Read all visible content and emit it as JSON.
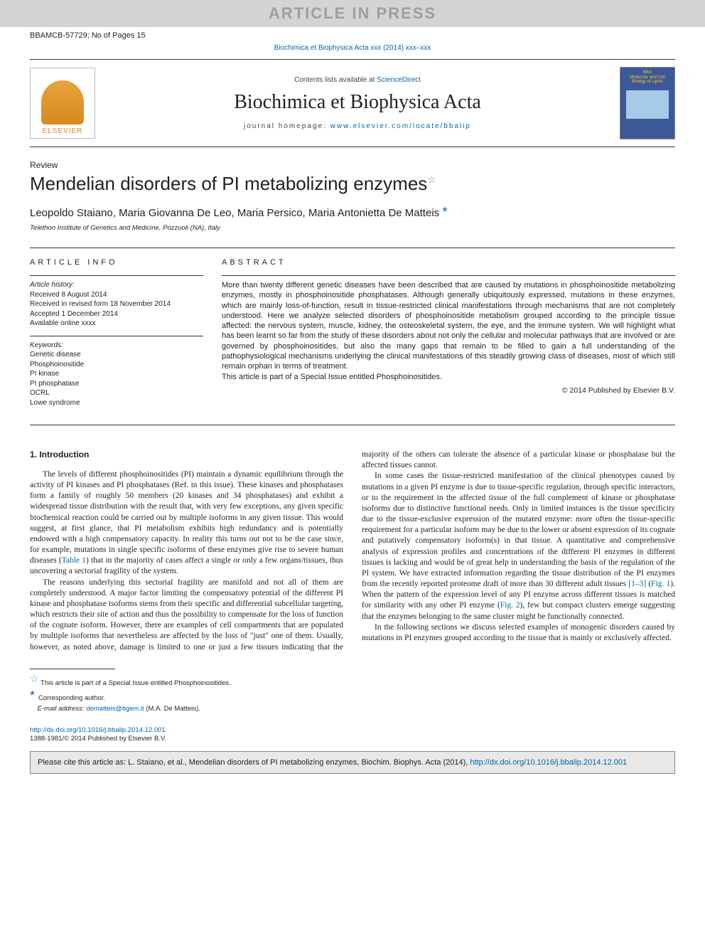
{
  "top_bar": "ARTICLE IN PRESS",
  "manuscript_id": "BBAMCB-57729; No of Pages 15",
  "citation_line": "Biochimica et Biophysica Acta xxx (2014) xxx–xxx",
  "header": {
    "contents_prefix": "Contents lists available at ",
    "contents_link": "ScienceDirect",
    "journal_name": "Biochimica et Biophysica Acta",
    "homepage_prefix": "journal homepage: ",
    "homepage_url": "www.elsevier.com/locate/bbalip",
    "elsevier_label": "ELSEVIER",
    "cover_top1": "BBA",
    "cover_top2": "Molecular and Cell Biology of Lipids"
  },
  "article": {
    "type": "Review",
    "title": "Mendelian disorders of PI metabolizing enzymes",
    "authors": "Leopoldo Staiano, Maria Giovanna De Leo, Maria Persico, Maria Antonietta De Matteis ",
    "affiliation": "Telethon Institute of Genetics and Medicine, Pozzuoli (NA), Italy"
  },
  "info": {
    "heading": "article info",
    "history_label": "Article history:",
    "received": "Received 8 August 2014",
    "revised": "Received in revised form 18 November 2014",
    "accepted": "Accepted 1 December 2014",
    "online": "Available online xxxx",
    "keywords_label": "Keywords:",
    "keywords": [
      "Genetic disease",
      "Phosphoinositide",
      "PI kinase",
      "PI phosphatase",
      "OCRL",
      "Lowe syndrome"
    ]
  },
  "abstract": {
    "heading": "abstract",
    "text": "More than twenty different genetic diseases have been described that are caused by mutations in phosphoinositide metabolizing enzymes, mostly in phosphoinositide phosphatases. Although generally ubiquitously expressed, mutations in these enzymes, which are mainly loss-of-function, result in tissue-restricted clinical manifestations through mechanisms that are not completely understood. Here we analyze selected disorders of phosphoinositide metabolism grouped according to the principle tissue affected: the nervous system, muscle, kidney, the osteoskeletal system, the eye, and the immune system. We will highlight what has been learnt so far from the study of these disorders about not only the cellular and molecular pathways that are involved or are governed by phosphoinositides, but also the many gaps that remain to be filled to gain a full understanding of the pathophysiological mechanisms underlying the clinical manifestations of this steadily growing class of diseases, most of which still remain orphan in terms of treatment.",
    "special_issue": "This article is part of a Special Issue entitled Phosphoinositides.",
    "copyright": "© 2014 Published by Elsevier B.V."
  },
  "intro": {
    "heading": "1. Introduction",
    "p1a": "The levels of different phosphoinositides (PI) maintain a dynamic equilibrium through the activity of PI kinases and PI phosphatases (Ref. in this issue). These kinases and phosphatases form a family of roughly 50 members (20 kinases and 34 phosphatases) and exhibit a widespread tissue distribution with the result that, with very few exceptions, any given specific biochemical reaction could be carried out by multiple isoforms in any given tissue. This would suggest, at first glance, that PI metabolism exhibits high redundancy and is potentially endowed with a high compensatory capacity. In reality this turns out not to be the case since, for example, mutations in single specific isoforms of these enzymes give rise to severe human diseases (",
    "p1_link": "Table 1",
    "p1b": ") that in the majority of cases affect a single or only a few organs/tissues, thus uncovering a sectorial fragility of the system.",
    "p2": "The reasons underlying this sectorial fragility are manifold and not all of them are completely understood. A major factor limiting the compensatory potential of the different PI kinase and phosphatase isoforms stems from their specific and differential subcellular targeting, which restricts their site of action and thus the possibility to compensate for the loss of function of the cognate isoform. However, there are examples of cell compartments that are populated ",
    "p2_cont": "by multiple isoforms that nevertheless are affected by the loss of \"just\" one of them. Usually, however, as noted above, damage is limited to one or just a few tissues indicating that the majority of the others can tolerate the absence of a particular kinase or phosphatase but the affected tissues cannot.",
    "p3a": "In some cases the tissue-restricted manifestation of the clinical phenotypes caused by mutations in a given PI enzyme is due to tissue-specific regulation, through specific interactors, or to the requirement in the affected tissue of the full complement of kinase or phosphatase isoforms due to distinctive functional needs. Only in limited instances is the tissue specificity due to the tissue-exclusive expression of the mutated enzyme: more often the tissue-specific requirement for a particular isoform may be due to the lower or absent expression of its cognate and putatively compensatory isoform(s) in that tissue. A quantitative and comprehensive analysis of expression profiles and concentrations of the different PI enzymes in different tissues is lacking and would be of great help in understanding the basis of the regulation of the PI system. We have extracted information regarding the tissue distribution of the PI enzymes from the recently reported proteome draft of more than 30 different adult tissues ",
    "p3_ref1": "[1–3]",
    "p3_mid1": " (",
    "p3_fig1": "Fig. 1",
    "p3b": "). When the pattern of the expression level of any PI enzyme across different tissues is matched for similarity with any other PI enzyme (",
    "p3_fig2": "Fig. 2",
    "p3c": "), few but compact clusters emerge suggesting that the enzymes belonging to the same cluster might be functionally connected.",
    "p4": "In the following sections we discuss selected examples of monogenic disorders caused by mutations in PI enzymes grouped according to the tissue that is mainly or exclusively affected."
  },
  "footnotes": {
    "star_note": "This article is part of a Special Issue entitled Phosphoinositides.",
    "corr_label": "Corresponding author.",
    "email_label": "E-mail address: ",
    "email": "dematteis@tigem.it",
    "email_person": " (M.A. De Matteis)."
  },
  "doi": {
    "url": "http://dx.doi.org/10.1016/j.bbalip.2014.12.001",
    "issn": "1388-1981/© 2014 Published by Elsevier B.V."
  },
  "cite_box": {
    "prefix": "Please cite this article as: L. Staiano, et al., Mendelian disorders of PI metabolizing enzymes, Biochim. Biophys. Acta (2014), ",
    "url": "http://dx.doi.org/10.1016/j.bbalip.2014.12.001"
  },
  "colors": {
    "link": "#0066aa",
    "bar_bg": "#d3d3d3",
    "bar_text": "#9e9e9e",
    "cite_bg": "#e8e8e8"
  }
}
